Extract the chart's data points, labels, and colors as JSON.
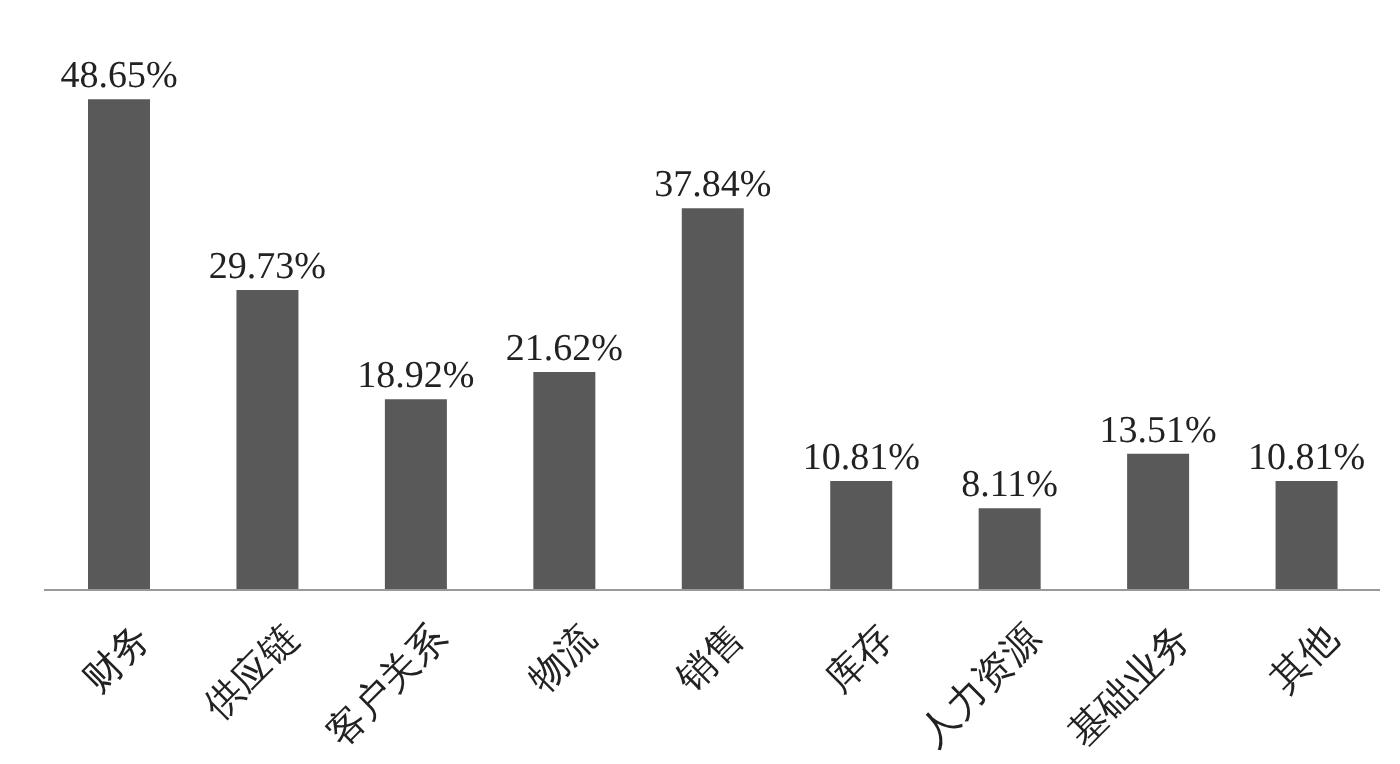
{
  "chart_data": {
    "type": "bar",
    "categories": [
      "财务",
      "供应链",
      "客户关系",
      "物流",
      "销售",
      "库存",
      "人力资源",
      "基础业务",
      "其他"
    ],
    "values": [
      48.65,
      29.73,
      18.92,
      21.62,
      37.84,
      10.81,
      8.11,
      13.51,
      10.81
    ],
    "value_labels": [
      "48.65%",
      "29.73%",
      "18.92%",
      "21.62%",
      "37.84%",
      "10.81%",
      "8.11%",
      "13.51%",
      "10.81%"
    ],
    "color": "#595959",
    "grid": false,
    "legend": false
  }
}
